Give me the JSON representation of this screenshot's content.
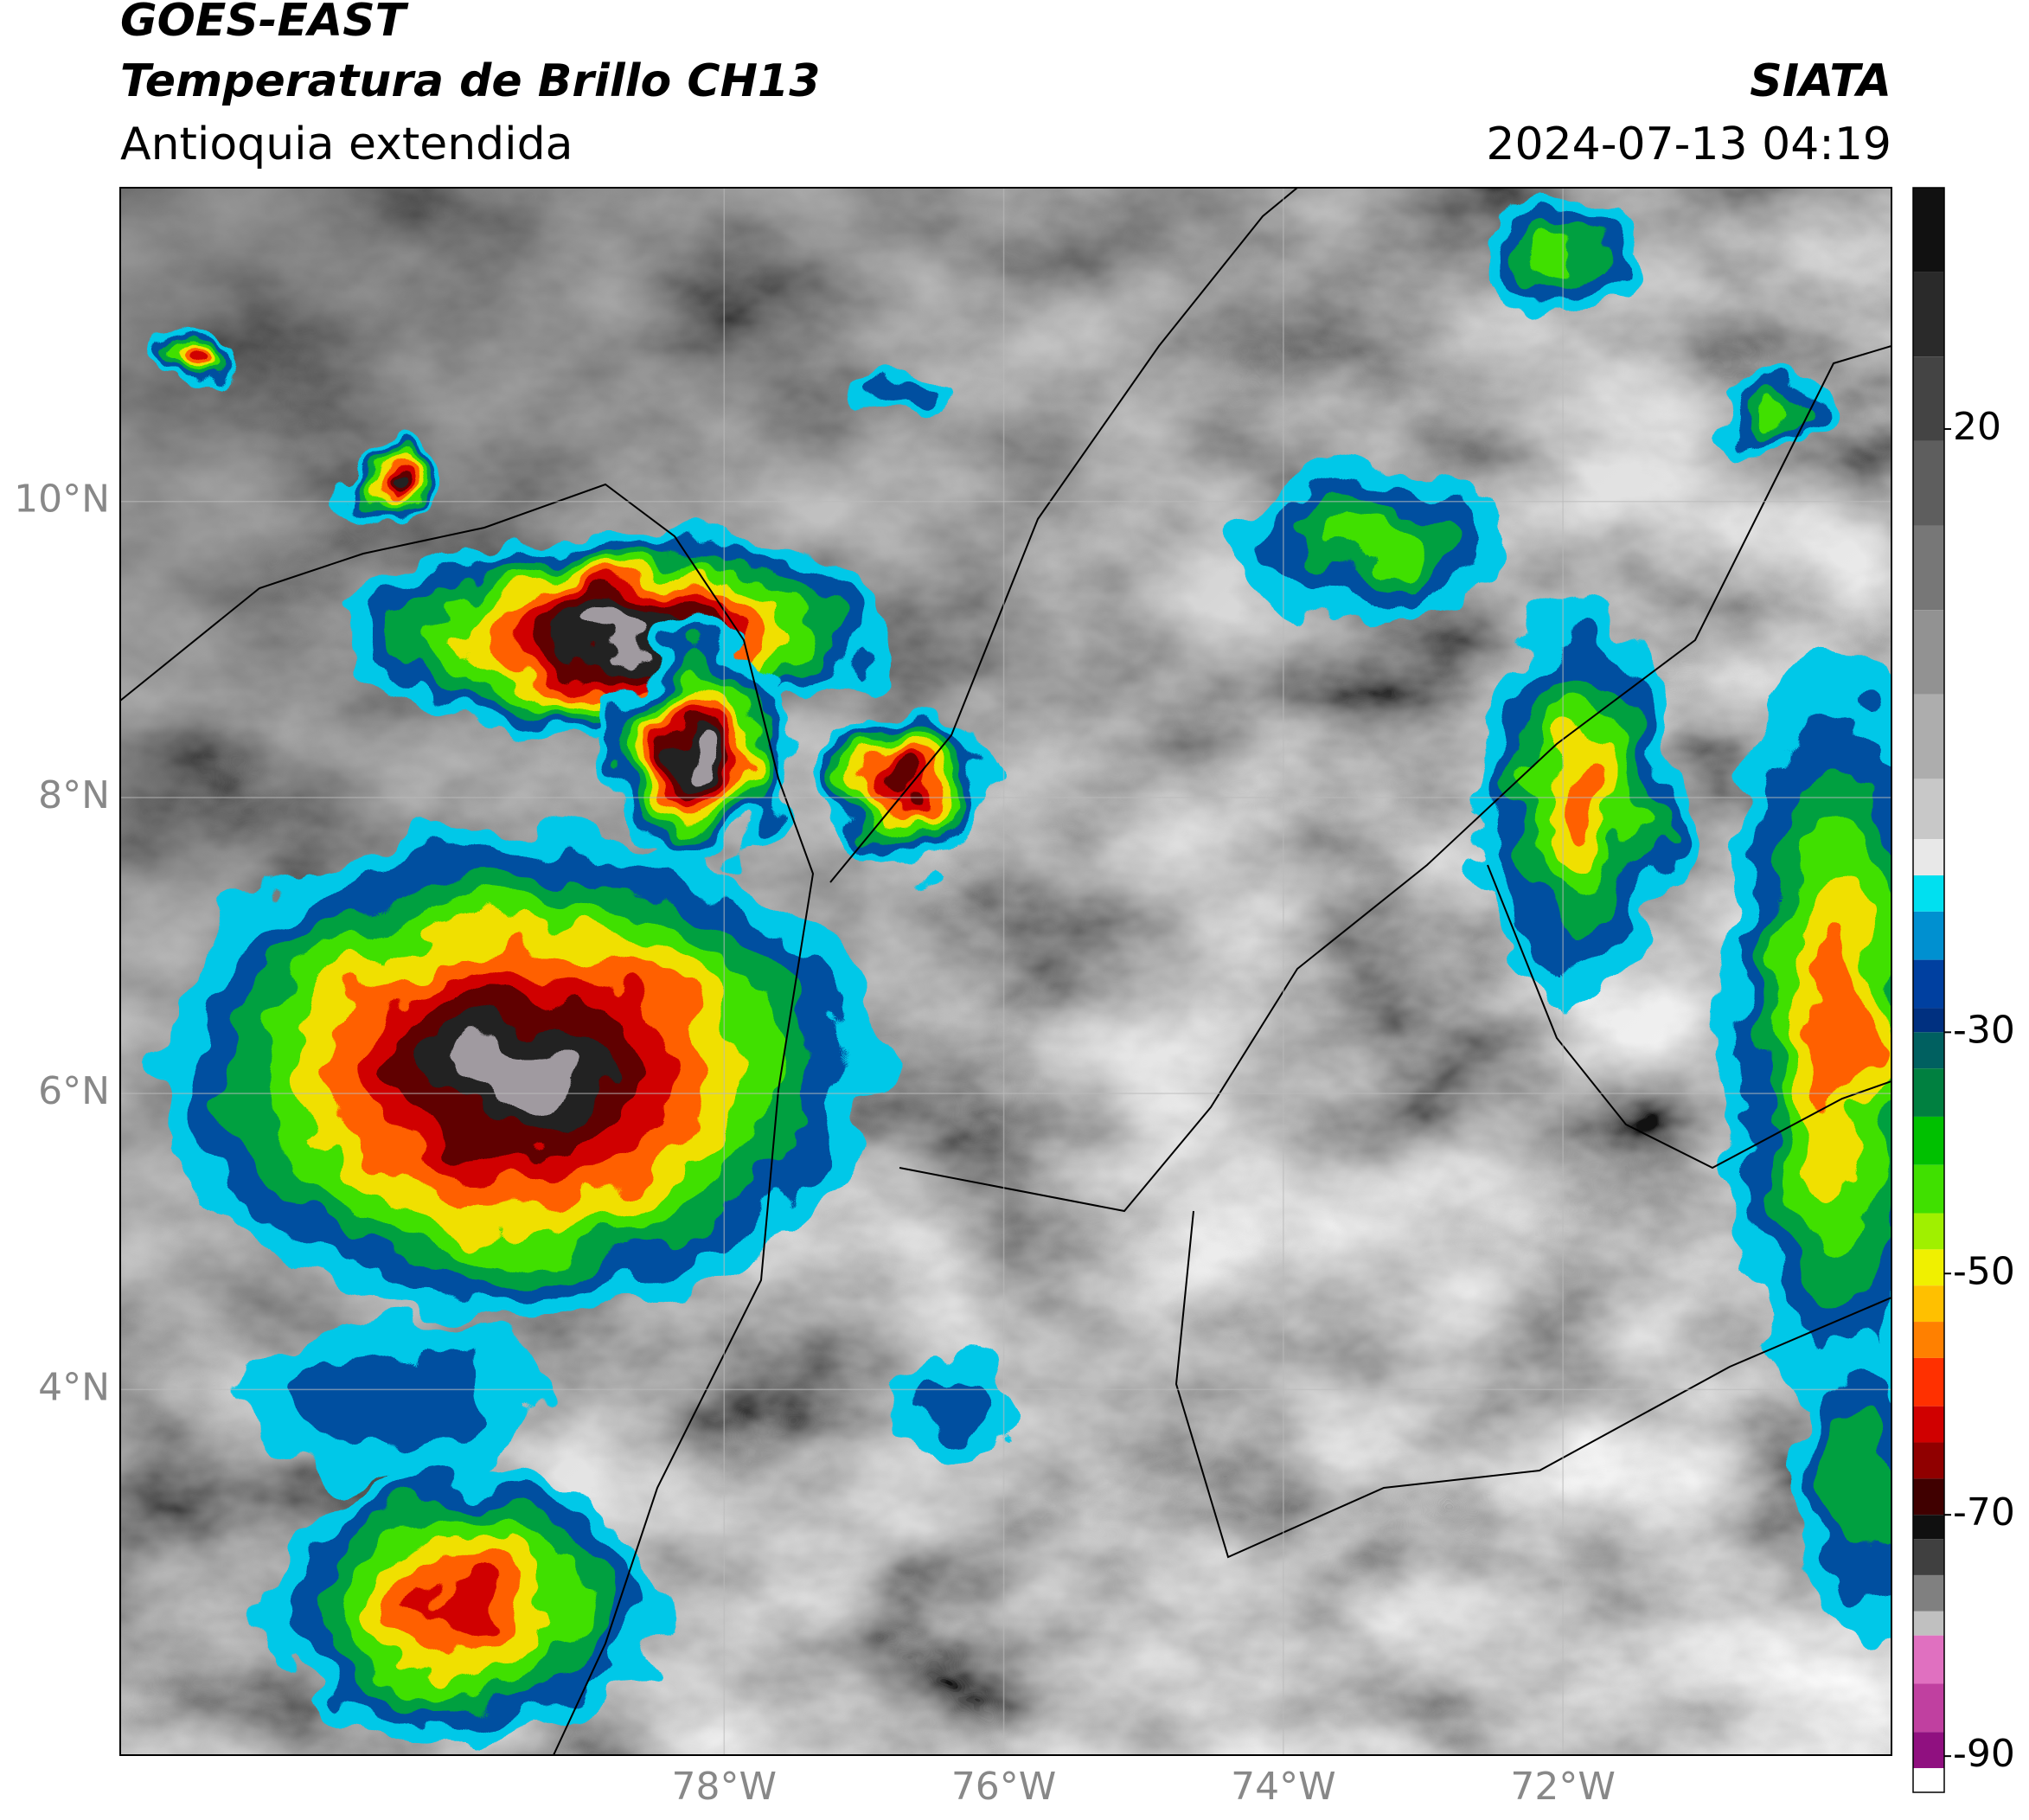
{
  "header": {
    "title": "GOES-EAST",
    "subtitle": "Temperatura de Brillo CH13",
    "region": "Antioquia extendida",
    "source": "SIATA",
    "datetime": "2024-07-13 04:19"
  },
  "map": {
    "xlim": [
      -82.32,
      -69.65
    ],
    "ylim": [
      1.53,
      12.12
    ],
    "xticks": [
      {
        "value": -78,
        "label": "78°W"
      },
      {
        "value": -76,
        "label": "76°W"
      },
      {
        "value": -74,
        "label": "74°W"
      },
      {
        "value": -72,
        "label": "72°W"
      }
    ],
    "yticks": [
      {
        "value": 10,
        "label": "10°N"
      },
      {
        "value": 8,
        "label": "8°N"
      },
      {
        "value": 6,
        "label": "6°N"
      },
      {
        "value": 4,
        "label": "4°N"
      }
    ],
    "grid": true
  },
  "colorbar": {
    "lim": [
      -93,
      40
    ],
    "ticks": [
      20,
      -30,
      -50,
      -70,
      -90
    ],
    "colors": [
      {
        "value": 40,
        "color": "#111111"
      },
      {
        "value": 33,
        "color": "#2a2a2a"
      },
      {
        "value": 26,
        "color": "#444444"
      },
      {
        "value": 19,
        "color": "#5e5e5e"
      },
      {
        "value": 12,
        "color": "#777777"
      },
      {
        "value": 5,
        "color": "#929292"
      },
      {
        "value": -2,
        "color": "#adadad"
      },
      {
        "value": -9,
        "color": "#c8c8c8"
      },
      {
        "value": -14,
        "color": "#e8e8e8"
      },
      {
        "value": -17,
        "color": "#00e0f0"
      },
      {
        "value": -20,
        "color": "#0090d0"
      },
      {
        "value": -24,
        "color": "#0040a0"
      },
      {
        "value": -28,
        "color": "#003080"
      },
      {
        "value": -30,
        "color": "#006060"
      },
      {
        "value": -33,
        "color": "#008040"
      },
      {
        "value": -37,
        "color": "#00c000"
      },
      {
        "value": -41,
        "color": "#40e000"
      },
      {
        "value": -45,
        "color": "#a0f000"
      },
      {
        "value": -48,
        "color": "#f0f000"
      },
      {
        "value": -51,
        "color": "#ffc000"
      },
      {
        "value": -54,
        "color": "#ff8000"
      },
      {
        "value": -57,
        "color": "#ff3000"
      },
      {
        "value": -61,
        "color": "#d00000"
      },
      {
        "value": -64,
        "color": "#900000"
      },
      {
        "value": -67,
        "color": "#400000"
      },
      {
        "value": -70,
        "color": "#101010"
      },
      {
        "value": -72,
        "color": "#404040"
      },
      {
        "value": -75,
        "color": "#808080"
      },
      {
        "value": -78,
        "color": "#c0c0c0"
      },
      {
        "value": -80,
        "color": "#e070c0"
      },
      {
        "value": -84,
        "color": "#c040a0"
      },
      {
        "value": -88,
        "color": "#901080"
      },
      {
        "value": -91,
        "color": "#ffffff"
      }
    ]
  }
}
